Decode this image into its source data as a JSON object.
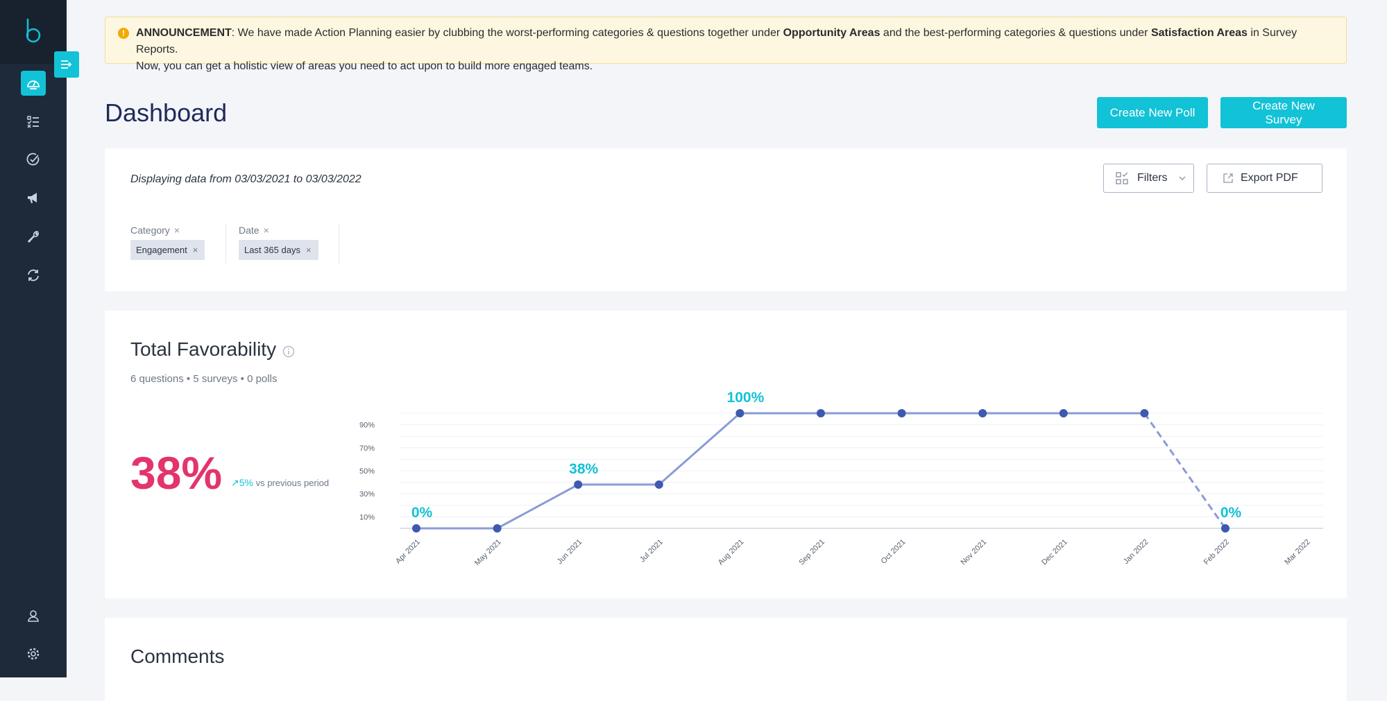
{
  "announcement": {
    "label": "ANNOUNCEMENT",
    "text1": ": We have made Action Planning easier by clubbing the worst-performing categories & questions  together under ",
    "bold1": "Opportunity Areas",
    "text2": " and the best-performing  categories & questions under ",
    "bold2": "Satisfaction Areas",
    "text3": " in Survey Reports.",
    "line2": "Now, you can get a holistic view of areas you need to act upon to build more engaged teams."
  },
  "header": {
    "title": "Dashboard",
    "create_poll": "Create New Poll",
    "create_survey": "Create New Survey"
  },
  "filters_card": {
    "date_range": "Displaying data from 03/03/2021 to 03/03/2022",
    "filters_label": "Filters",
    "export_label": "Export PDF",
    "groups": [
      {
        "label": "Category",
        "chip": "Engagement"
      },
      {
        "label": "Date",
        "chip": "Last 365 days"
      }
    ]
  },
  "favorability": {
    "title": "Total Favorability",
    "subtitle": "6 questions • 5 surveys • 0 polls",
    "value": "38%",
    "delta": "5%",
    "delta_text": "vs previous period"
  },
  "chart_data": {
    "type": "line",
    "x": [
      "Apr 2021",
      "May 2021",
      "Jun 2021",
      "Jul 2021",
      "Aug 2021",
      "Sep 2021",
      "Oct 2021",
      "Nov 2021",
      "Dec 2021",
      "Jan 2022",
      "Feb 2022",
      "Mar 2022"
    ],
    "y_ticks": [
      "10%",
      "30%",
      "50%",
      "70%",
      "90%"
    ],
    "ylim": [
      0,
      100
    ],
    "series": [
      {
        "values": [
          0,
          0,
          38,
          38,
          100,
          100,
          100,
          100,
          100,
          100,
          0,
          null
        ]
      }
    ],
    "dashed_segment": [
      "Jan 2022",
      "Feb 2022"
    ],
    "point_labels": [
      {
        "x": "Apr 2021",
        "text": "0%"
      },
      {
        "x": "Jun 2021",
        "text": "38%"
      },
      {
        "x": "Aug 2021",
        "text": "100%"
      },
      {
        "x": "Feb 2022",
        "text": "0%"
      }
    ],
    "colors": {
      "line": "#8a9bd6",
      "point": "#3d59b0",
      "label": "#12c2d6"
    },
    "grid": true
  },
  "comments": {
    "title": "Comments"
  },
  "colors": {
    "accent": "#12c2d6",
    "sidebar": "#1e2a3a",
    "highlight": "#e3346b",
    "title": "#1f2a5c"
  },
  "sidebar": {
    "icons": [
      "dashboard-icon",
      "checklist-icon",
      "check-circle-icon",
      "megaphone-icon",
      "wrench-icon",
      "refresh-icon",
      "user-icon",
      "settings-icon"
    ]
  }
}
